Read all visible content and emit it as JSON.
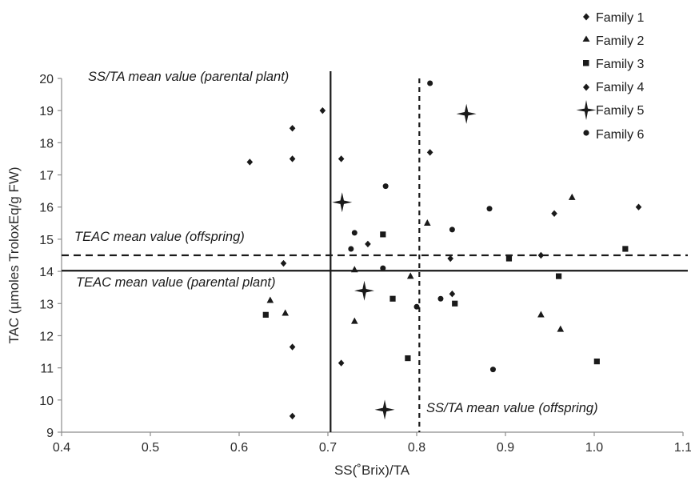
{
  "chart_data": {
    "type": "scatter",
    "xlabel": "SS(˚Brix)/TA",
    "ylabel": "TAC (µmoles TroloxEq/g FW)",
    "xlim": [
      0.4,
      1.1
    ],
    "ylim": [
      9,
      20
    ],
    "x_ticks": [
      "0.4",
      "0.5",
      "0.6",
      "0.7",
      "0.8",
      "0.9",
      "1.0",
      "1.1"
    ],
    "y_ticks": [
      "9",
      "10",
      "11",
      "12",
      "13",
      "14",
      "15",
      "16",
      "17",
      "18",
      "19",
      "20"
    ],
    "grid": false,
    "legend_position": "top-right",
    "series": [
      {
        "name": "Family 1",
        "marker": "diamond",
        "points": [
          [
            0.66,
            9.5
          ],
          [
            0.66,
            11.65
          ],
          [
            0.65,
            14.25
          ],
          [
            0.66,
            17.5
          ],
          [
            0.66,
            18.45
          ],
          [
            0.715,
            11.15
          ],
          [
            0.715,
            17.5
          ],
          [
            0.745,
            14.85
          ],
          [
            0.815,
            17.7
          ],
          [
            0.84,
            13.3
          ],
          [
            0.94,
            14.5
          ],
          [
            0.955,
            15.8
          ],
          [
            1.05,
            16.0
          ]
        ]
      },
      {
        "name": "Family 2",
        "marker": "triangle",
        "points": [
          [
            0.635,
            13.1
          ],
          [
            0.652,
            12.7
          ],
          [
            0.73,
            12.45
          ],
          [
            0.73,
            14.05
          ],
          [
            0.793,
            13.85
          ],
          [
            0.812,
            15.5
          ],
          [
            0.94,
            12.65
          ],
          [
            0.962,
            12.2
          ],
          [
            0.975,
            16.3
          ]
        ]
      },
      {
        "name": "Family 3",
        "marker": "square",
        "points": [
          [
            0.63,
            12.65
          ],
          [
            0.762,
            15.15
          ],
          [
            0.773,
            13.15
          ],
          [
            0.79,
            11.3
          ],
          [
            0.843,
            13.0
          ],
          [
            0.904,
            14.4
          ],
          [
            0.96,
            13.85
          ],
          [
            1.003,
            11.2
          ],
          [
            1.035,
            14.7
          ]
        ]
      },
      {
        "name": "Family 4",
        "marker": "diamond",
        "points": [
          [
            0.612,
            17.4
          ],
          [
            0.694,
            19.0
          ],
          [
            0.838,
            14.4
          ]
        ]
      },
      {
        "name": "Family 5",
        "marker": "star",
        "points": [
          [
            0.716,
            16.15
          ],
          [
            0.741,
            13.4
          ],
          [
            0.764,
            9.7
          ],
          [
            0.856,
            18.9
          ]
        ]
      },
      {
        "name": "Family 6",
        "marker": "circle",
        "points": [
          [
            0.726,
            14.7
          ],
          [
            0.73,
            15.2
          ],
          [
            0.762,
            14.1
          ],
          [
            0.765,
            16.65
          ],
          [
            0.8,
            12.9
          ],
          [
            0.815,
            19.85
          ],
          [
            0.827,
            13.15
          ],
          [
            0.84,
            15.3
          ],
          [
            0.882,
            15.95
          ],
          [
            0.886,
            10.95
          ]
        ]
      }
    ],
    "reference_lines": [
      {
        "orientation": "vertical",
        "value": 0.703,
        "style": "solid",
        "label": "SS/TA mean value (parental plant)"
      },
      {
        "orientation": "vertical",
        "value": 0.803,
        "style": "dashed",
        "label": "SS/TA mean value (offspring)"
      },
      {
        "orientation": "horizontal",
        "value": 14.02,
        "style": "solid",
        "label": "TEAC mean value (parental plant)"
      },
      {
        "orientation": "horizontal",
        "value": 14.5,
        "style": "dashed",
        "label": "TEAC mean value (offspring)"
      }
    ],
    "colors": {
      "ink": "#1a1a1a",
      "axis": "#8c8c8c",
      "background": "#ffffff"
    }
  }
}
